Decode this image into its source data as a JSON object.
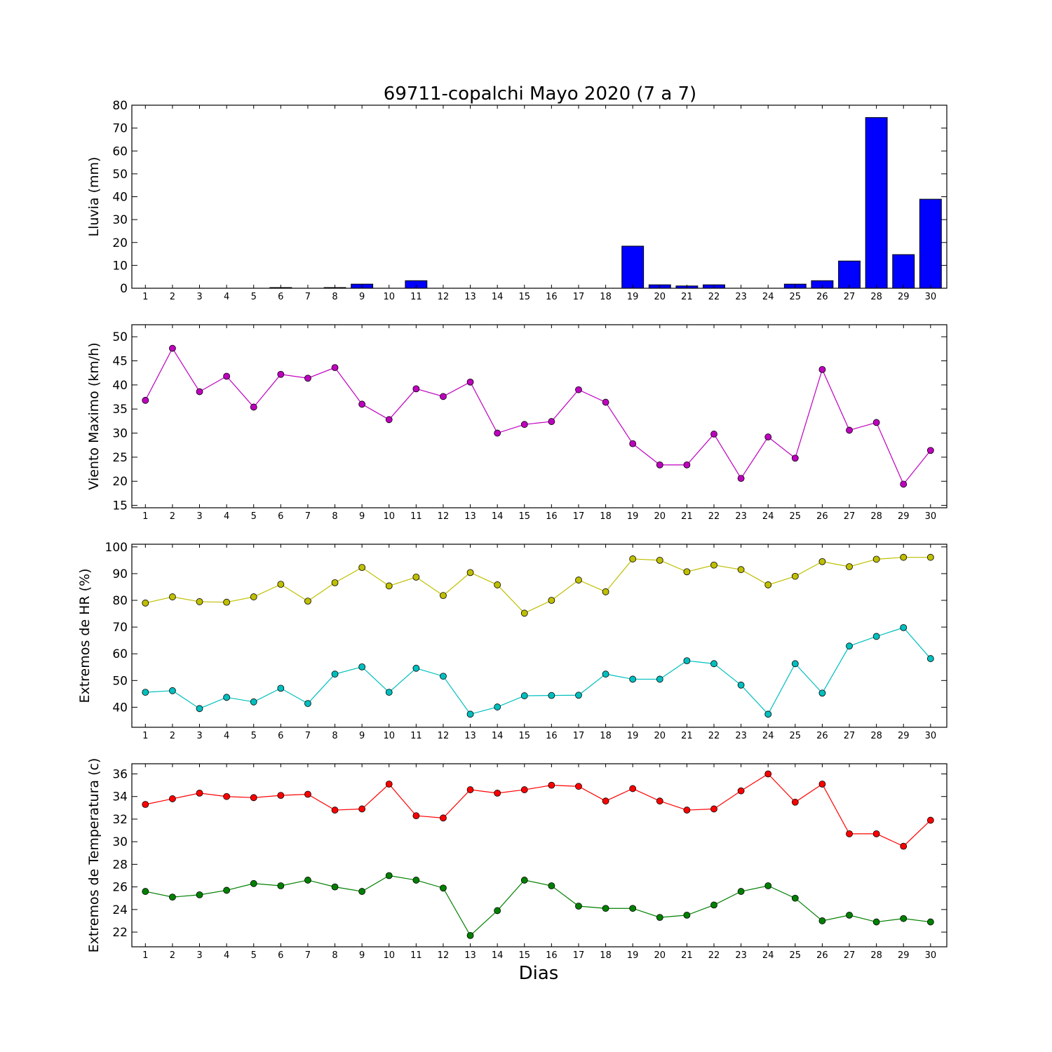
{
  "figure": {
    "title": "69711-copalchi Mayo 2020  (7 a 7)",
    "xlabel": "Dias"
  },
  "colors": {
    "rain_bar": "#0000ff",
    "wind": "#bf00bf",
    "hr_max": "#bfbf00",
    "hr_min": "#00bfbf",
    "temp_max": "#ff0000",
    "temp_min": "#008000"
  },
  "chart_data": [
    {
      "type": "bar",
      "ylabel": "Lluvia (mm)",
      "categories": [
        "1",
        "2",
        "3",
        "4",
        "5",
        "6",
        "7",
        "8",
        "9",
        "10",
        "11",
        "12",
        "13",
        "14",
        "15",
        "16",
        "17",
        "18",
        "19",
        "20",
        "21",
        "22",
        "23",
        "24",
        "25",
        "26",
        "27",
        "28",
        "29",
        "30"
      ],
      "series": [
        {
          "values": [
            0,
            0,
            0,
            0,
            0,
            0.3,
            0,
            0.3,
            1.8,
            0,
            3.3,
            0,
            0,
            0,
            0,
            0,
            0,
            0,
            18.4,
            1.5,
            1.0,
            1.5,
            0,
            0,
            1.8,
            3.3,
            11.9,
            74.6,
            14.7,
            38.9
          ]
        }
      ],
      "ylim": [
        0,
        80
      ],
      "yticks": [
        0,
        10,
        20,
        30,
        40,
        50,
        60,
        70,
        80
      ],
      "grid": false
    },
    {
      "type": "line",
      "ylabel": "Viento Maximo (km/h)",
      "categories": [
        "1",
        "2",
        "3",
        "4",
        "5",
        "6",
        "7",
        "8",
        "9",
        "10",
        "11",
        "12",
        "13",
        "14",
        "15",
        "16",
        "17",
        "18",
        "19",
        "20",
        "21",
        "22",
        "23",
        "24",
        "25",
        "26",
        "27",
        "28",
        "29",
        "30"
      ],
      "series": [
        {
          "values": [
            36.8,
            47.6,
            38.6,
            41.8,
            35.4,
            42.2,
            41.4,
            43.6,
            36.0,
            32.8,
            39.2,
            37.6,
            40.6,
            30.0,
            31.8,
            32.4,
            39.0,
            36.4,
            27.8,
            23.4,
            23.4,
            29.8,
            20.6,
            29.2,
            24.8,
            43.2,
            30.6,
            32.2,
            19.4,
            26.4
          ]
        }
      ],
      "ylim": [
        14.5,
        52.5
      ],
      "yticks": [
        15,
        20,
        25,
        30,
        35,
        40,
        45,
        50
      ],
      "grid": false
    },
    {
      "type": "line",
      "ylabel": "Extremos de HR (%)",
      "categories": [
        "1",
        "2",
        "3",
        "4",
        "5",
        "6",
        "7",
        "8",
        "9",
        "10",
        "11",
        "12",
        "13",
        "14",
        "15",
        "16",
        "17",
        "18",
        "19",
        "20",
        "21",
        "22",
        "23",
        "24",
        "25",
        "26",
        "27",
        "28",
        "29",
        "30"
      ],
      "series": [
        {
          "values": [
            79,
            81.3,
            79.5,
            79.3,
            81.3,
            86,
            79.7,
            86.6,
            92.3,
            85.4,
            88.7,
            81.8,
            90.4,
            85.8,
            75.2,
            80,
            87.6,
            83.2,
            95.5,
            95,
            90.7,
            93.2,
            91.5,
            85.8,
            89,
            94.5,
            92.6,
            95.4,
            96.1,
            96.1
          ]
        },
        {
          "values": [
            45.6,
            46.2,
            39.5,
            43.7,
            42,
            47.1,
            41.4,
            52.4,
            55.1,
            45.6,
            54.6,
            51.6,
            37.4,
            40.1,
            44.3,
            44.4,
            44.5,
            52.4,
            50.5,
            50.5,
            57.4,
            56.3,
            48.3,
            37.4,
            56.3,
            45.3,
            62.9,
            66.5,
            69.8,
            58.2
          ]
        }
      ],
      "ylim": [
        32.5,
        101
      ],
      "yticks": [
        40,
        50,
        60,
        70,
        80,
        90,
        100
      ],
      "grid": false
    },
    {
      "type": "line",
      "ylabel": "Extremos de Temperatura (c)",
      "categories": [
        "1",
        "2",
        "3",
        "4",
        "5",
        "6",
        "7",
        "8",
        "9",
        "10",
        "11",
        "12",
        "13",
        "14",
        "15",
        "16",
        "17",
        "18",
        "19",
        "20",
        "21",
        "22",
        "23",
        "24",
        "25",
        "26",
        "27",
        "28",
        "29",
        "30"
      ],
      "series": [
        {
          "values": [
            33.3,
            33.8,
            34.3,
            34.0,
            33.9,
            34.1,
            34.2,
            32.8,
            32.9,
            35.1,
            32.3,
            32.1,
            34.6,
            34.3,
            34.6,
            35.0,
            34.9,
            33.6,
            34.7,
            33.6,
            32.8,
            32.9,
            34.5,
            36.0,
            33.5,
            35.1,
            30.7,
            30.7,
            29.6,
            31.9
          ]
        },
        {
          "values": [
            25.6,
            25.1,
            25.3,
            25.7,
            26.3,
            26.1,
            26.6,
            26.0,
            25.6,
            27.0,
            26.6,
            25.9,
            21.7,
            23.9,
            26.6,
            26.1,
            24.3,
            24.1,
            24.1,
            23.3,
            23.5,
            24.4,
            25.6,
            26.1,
            25.0,
            23.0,
            23.5,
            22.9,
            23.2,
            22.9
          ]
        }
      ],
      "ylim": [
        20.7,
        36.9
      ],
      "yticks": [
        22,
        24,
        26,
        28,
        30,
        32,
        34,
        36
      ],
      "grid": false
    }
  ]
}
